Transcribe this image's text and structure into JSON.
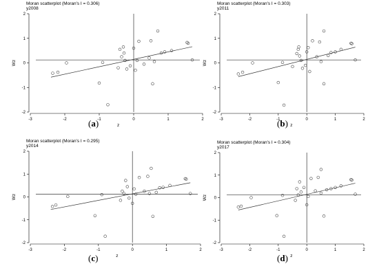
{
  "chart_data": [
    {
      "type": "scatter",
      "title": "Moran scatterplot (Moran's I = 0.306)",
      "subtitle": "y2008",
      "xlabel": "z",
      "ylabel": "Wz",
      "xlim": [
        -3,
        2
      ],
      "ylim": [
        -2,
        2
      ],
      "xticks": [
        "-3",
        "-2",
        "-1",
        "0",
        "1",
        "2"
      ],
      "yticks": [
        "-2",
        "-1",
        "0",
        "1",
        "2"
      ],
      "hline_y": 0.12,
      "fit_line": {
        "x": [
          -2.4,
          1.7
        ],
        "y": [
          -0.58,
          0.66
        ]
      },
      "points": [
        {
          "x": -2.35,
          "y": -0.42
        },
        {
          "x": -2.2,
          "y": -0.38
        },
        {
          "x": -1.95,
          "y": 0.0
        },
        {
          "x": -1.0,
          "y": -0.82
        },
        {
          "x": -0.9,
          "y": 0.02
        },
        {
          "x": -0.75,
          "y": -1.7
        },
        {
          "x": -0.45,
          "y": -0.2
        },
        {
          "x": -0.4,
          "y": 0.55
        },
        {
          "x": -0.35,
          "y": 0.25
        },
        {
          "x": -0.3,
          "y": 0.65
        },
        {
          "x": -0.28,
          "y": 0.4
        },
        {
          "x": -0.25,
          "y": 0.1
        },
        {
          "x": -0.2,
          "y": -0.25
        },
        {
          "x": -0.1,
          "y": -0.12
        },
        {
          "x": 0.0,
          "y": 0.6
        },
        {
          "x": 0.05,
          "y": -0.3
        },
        {
          "x": 0.1,
          "y": 0.1
        },
        {
          "x": 0.15,
          "y": 0.88
        },
        {
          "x": 0.3,
          "y": -0.05
        },
        {
          "x": 0.45,
          "y": 0.2
        },
        {
          "x": 0.5,
          "y": 0.9
        },
        {
          "x": 0.55,
          "y": -0.85
        },
        {
          "x": 0.6,
          "y": 0.05
        },
        {
          "x": 0.7,
          "y": 1.3
        },
        {
          "x": 0.8,
          "y": 0.4
        },
        {
          "x": 0.9,
          "y": 0.45
        },
        {
          "x": 1.1,
          "y": 0.5
        },
        {
          "x": 1.55,
          "y": 0.83
        },
        {
          "x": 1.58,
          "y": 0.8
        },
        {
          "x": 1.7,
          "y": 0.12
        }
      ],
      "panel_label": "(a)"
    },
    {
      "type": "scatter",
      "title": "Moran scatterplot (Moran's I = 0.303)",
      "subtitle": "y2011",
      "xlabel": "z",
      "ylabel": "Wz",
      "xlim": [
        -3,
        2
      ],
      "ylim": [
        -2,
        2
      ],
      "xticks": [
        "-3",
        "-2",
        "-1",
        "0",
        "1",
        "2"
      ],
      "yticks": [
        "-2",
        "-1",
        "0",
        "1",
        "2"
      ],
      "hline_y": 0.12,
      "fit_line": {
        "x": [
          -2.4,
          1.7
        ],
        "y": [
          -0.56,
          0.64
        ]
      },
      "points": [
        {
          "x": -2.4,
          "y": -0.45
        },
        {
          "x": -2.25,
          "y": -0.38
        },
        {
          "x": -1.9,
          "y": 0.0
        },
        {
          "x": -1.0,
          "y": -0.8
        },
        {
          "x": -0.85,
          "y": 0.02
        },
        {
          "x": -0.8,
          "y": -1.72
        },
        {
          "x": -0.5,
          "y": -0.15
        },
        {
          "x": -0.35,
          "y": 0.38
        },
        {
          "x": -0.3,
          "y": 0.55
        },
        {
          "x": -0.28,
          "y": 0.65
        },
        {
          "x": -0.25,
          "y": 0.28
        },
        {
          "x": -0.2,
          "y": 0.1
        },
        {
          "x": -0.15,
          "y": -0.22
        },
        {
          "x": -0.05,
          "y": -0.1
        },
        {
          "x": 0.0,
          "y": 0.45
        },
        {
          "x": 0.05,
          "y": 0.62
        },
        {
          "x": 0.1,
          "y": -0.35
        },
        {
          "x": 0.2,
          "y": 0.9
        },
        {
          "x": 0.35,
          "y": 0.25
        },
        {
          "x": 0.45,
          "y": 0.85
        },
        {
          "x": 0.5,
          "y": 0.05
        },
        {
          "x": 0.6,
          "y": -0.85
        },
        {
          "x": 0.6,
          "y": 1.3
        },
        {
          "x": 0.75,
          "y": 0.3
        },
        {
          "x": 0.85,
          "y": 0.42
        },
        {
          "x": 1.0,
          "y": 0.45
        },
        {
          "x": 1.2,
          "y": 0.55
        },
        {
          "x": 1.55,
          "y": 0.8
        },
        {
          "x": 1.58,
          "y": 0.78
        },
        {
          "x": 1.7,
          "y": 0.12
        }
      ],
      "panel_label": "(b)"
    },
    {
      "type": "scatter",
      "title": "Moran scatterplot (Moran's I = 0.295)",
      "subtitle": "y2014",
      "xlabel": "z",
      "ylabel": "Wz",
      "xlim": [
        -3,
        2
      ],
      "ylim": [
        -2,
        2
      ],
      "xticks": [
        "-3",
        "-2",
        "-1",
        "0",
        "1",
        "2"
      ],
      "yticks": [
        "-2",
        "-1",
        "0",
        "1",
        "2"
      ],
      "hline_y": 0.12,
      "fit_line": {
        "x": [
          -2.4,
          1.7
        ],
        "y": [
          -0.55,
          0.62
        ]
      },
      "points": [
        {
          "x": -2.35,
          "y": -0.42
        },
        {
          "x": -2.25,
          "y": -0.35
        },
        {
          "x": -1.9,
          "y": 0.02
        },
        {
          "x": -1.1,
          "y": -0.82
        },
        {
          "x": -0.9,
          "y": 0.1
        },
        {
          "x": -0.8,
          "y": -1.72
        },
        {
          "x": -0.35,
          "y": -0.15
        },
        {
          "x": -0.3,
          "y": 0.25
        },
        {
          "x": -0.25,
          "y": 0.15
        },
        {
          "x": -0.2,
          "y": 0.72
        },
        {
          "x": -0.15,
          "y": 0.45
        },
        {
          "x": -0.1,
          "y": -0.05
        },
        {
          "x": 0.0,
          "y": -0.28
        },
        {
          "x": 0.05,
          "y": 0.35
        },
        {
          "x": 0.1,
          "y": 0.12
        },
        {
          "x": 0.2,
          "y": 0.85
        },
        {
          "x": 0.35,
          "y": 0.25
        },
        {
          "x": 0.45,
          "y": 0.9
        },
        {
          "x": 0.5,
          "y": 0.15
        },
        {
          "x": 0.55,
          "y": 1.25
        },
        {
          "x": 0.6,
          "y": -0.85
        },
        {
          "x": 0.7,
          "y": 0.2
        },
        {
          "x": 0.8,
          "y": 0.4
        },
        {
          "x": 0.9,
          "y": 0.42
        },
        {
          "x": 1.1,
          "y": 0.5
        },
        {
          "x": 1.55,
          "y": 0.8
        },
        {
          "x": 1.58,
          "y": 0.78
        },
        {
          "x": 1.7,
          "y": 0.15
        }
      ],
      "panel_label": "(c)"
    },
    {
      "type": "scatter",
      "title": "Moran scatterplot (Moran's I = 0.304)",
      "subtitle": "y2017",
      "xlabel": "z",
      "ylabel": "Wz",
      "xlim": [
        -3,
        2
      ],
      "ylim": [
        -2,
        2
      ],
      "xticks": [
        "-3",
        "-2",
        "-1",
        "0",
        "1",
        "2"
      ],
      "yticks": [
        "-2",
        "-1",
        "0",
        "1",
        "2"
      ],
      "hline_y": 0.12,
      "fit_line": {
        "x": [
          -2.4,
          1.7
        ],
        "y": [
          -0.55,
          0.64
        ]
      },
      "points": [
        {
          "x": -2.4,
          "y": -0.42
        },
        {
          "x": -2.3,
          "y": -0.38
        },
        {
          "x": -1.95,
          "y": 0.0
        },
        {
          "x": -1.05,
          "y": -0.8
        },
        {
          "x": -0.85,
          "y": 0.1
        },
        {
          "x": -0.8,
          "y": -1.72
        },
        {
          "x": -0.4,
          "y": -0.12
        },
        {
          "x": -0.35,
          "y": 0.4
        },
        {
          "x": -0.3,
          "y": 0.12
        },
        {
          "x": -0.25,
          "y": 0.7
        },
        {
          "x": -0.2,
          "y": 0.25
        },
        {
          "x": -0.1,
          "y": 0.45
        },
        {
          "x": 0.0,
          "y": -0.32
        },
        {
          "x": 0.05,
          "y": 0.05
        },
        {
          "x": 0.15,
          "y": 0.85
        },
        {
          "x": 0.3,
          "y": 0.3
        },
        {
          "x": 0.4,
          "y": 0.9
        },
        {
          "x": 0.5,
          "y": 0.2
        },
        {
          "x": 0.5,
          "y": 1.25
        },
        {
          "x": 0.6,
          "y": -0.82
        },
        {
          "x": 0.7,
          "y": 0.35
        },
        {
          "x": 0.85,
          "y": 0.4
        },
        {
          "x": 1.0,
          "y": 0.45
        },
        {
          "x": 1.2,
          "y": 0.52
        },
        {
          "x": 1.55,
          "y": 0.8
        },
        {
          "x": 1.58,
          "y": 0.78
        },
        {
          "x": 1.7,
          "y": 0.15
        }
      ],
      "panel_label": "(d)"
    }
  ]
}
